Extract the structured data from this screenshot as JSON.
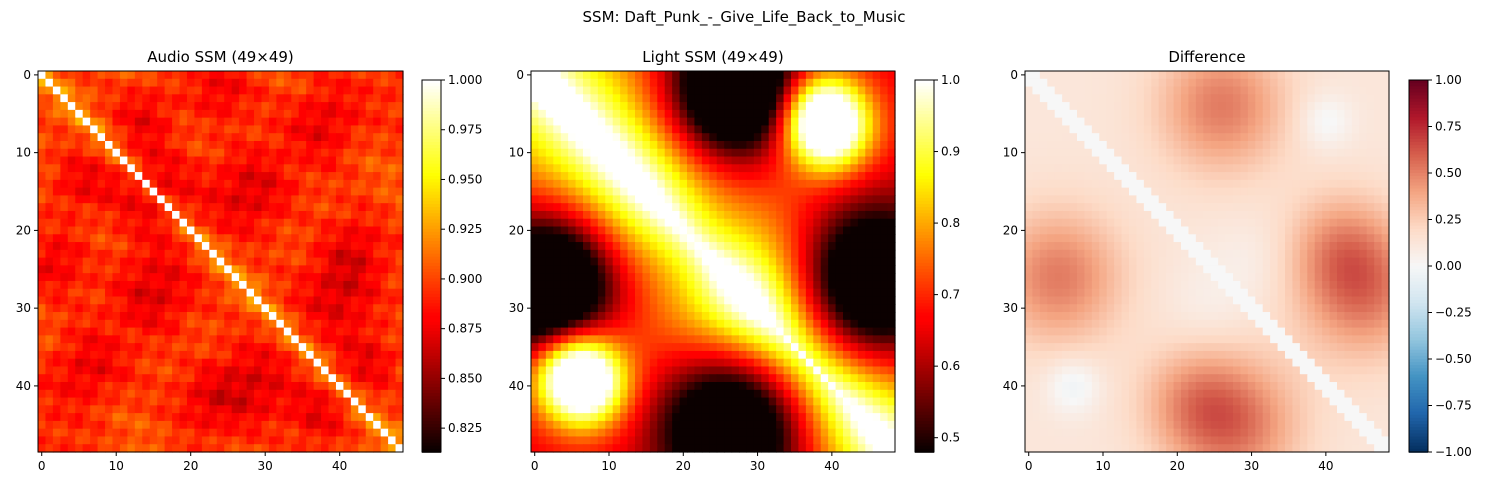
{
  "figure": {
    "suptitle": "SSM: Daft_Punk_-_Give_Life_Back_to_Music"
  },
  "chart_data": [
    {
      "type": "heatmap",
      "title": "Audio SSM (49×49)",
      "size": 49,
      "colormap": "hot",
      "vmin": 0.813,
      "vmax": 1.0,
      "axis_ticks": [
        "0",
        "10",
        "20",
        "30",
        "40"
      ],
      "colorbar_ticks": [
        "0.825",
        "0.850",
        "0.875",
        "0.900",
        "0.925",
        "0.950",
        "0.975",
        "1.000"
      ],
      "colorbar_tick_values": [
        0.825,
        0.85,
        0.875,
        0.9,
        0.925,
        0.95,
        0.975,
        1.0
      ],
      "dark_regions": [
        [
          15,
          28,
          0.035,
          4
        ],
        [
          28,
          15,
          0.035,
          4
        ],
        [
          15,
          15,
          0.03,
          4
        ],
        [
          28,
          40,
          0.035,
          4
        ],
        [
          40,
          28,
          0.035,
          4
        ],
        [
          6,
          38,
          0.03,
          3.5
        ],
        [
          38,
          6,
          0.03,
          3.5
        ],
        [
          5,
          14,
          0.025,
          3
        ],
        [
          14,
          5,
          0.025,
          3
        ],
        [
          37,
          44,
          0.025,
          3
        ],
        [
          44,
          37,
          0.025,
          3
        ],
        [
          22,
          42,
          0.02,
          3
        ],
        [
          42,
          22,
          0.02,
          3
        ],
        [
          2,
          24,
          0.025,
          3
        ],
        [
          24,
          2,
          0.025,
          3
        ]
      ],
      "bright_bands": [
        [
          12,
          0.06,
          3
        ],
        [
          21,
          0.04,
          3
        ],
        [
          33,
          0.06,
          3
        ]
      ]
    },
    {
      "type": "heatmap",
      "title": "Light SSM (49×49)",
      "size": 49,
      "colormap": "hot",
      "vmin": 0.48,
      "vmax": 1.0,
      "axis_ticks": [
        "0",
        "10",
        "20",
        "30",
        "40"
      ],
      "colorbar_ticks": [
        "0.5",
        "0.6",
        "0.7",
        "0.8",
        "0.9",
        "1.0"
      ],
      "colorbar_tick_values": [
        0.5,
        0.6,
        0.7,
        0.8,
        0.9,
        1.0
      ],
      "dark_regions": [
        [
          2,
          27,
          0.5,
          6
        ],
        [
          27,
          2,
          0.5,
          6
        ],
        [
          27,
          45,
          0.45,
          7
        ],
        [
          45,
          27,
          0.45,
          7
        ],
        [
          25,
          20,
          0.12,
          6
        ],
        [
          20,
          25,
          0.12,
          6
        ]
      ],
      "bright_regions": [
        [
          7,
          40,
          0.3,
          4
        ],
        [
          40,
          7,
          0.3,
          4
        ],
        [
          38,
          5,
          0.3,
          4
        ],
        [
          5,
          38,
          0.3,
          4
        ],
        [
          25,
          25,
          0.15,
          8
        ]
      ],
      "diag_width": 12
    },
    {
      "type": "heatmap",
      "title": "Difference",
      "size": 49,
      "colormap": "RdBu_r",
      "vmin": -1.0,
      "vmax": 1.0,
      "axis_ticks": [
        "0",
        "10",
        "20",
        "30",
        "40"
      ],
      "colorbar_ticks": [
        "−1.00",
        "−0.75",
        "−0.50",
        "−0.25",
        "0.00",
        "0.25",
        "0.50",
        "0.75",
        "1.00"
      ],
      "colorbar_tick_values": [
        -1.0,
        -0.75,
        -0.5,
        -0.25,
        0.0,
        0.25,
        0.5,
        0.75,
        1.0
      ],
      "warm_regions": [
        [
          4,
          26,
          0.4,
          6
        ],
        [
          26,
          4,
          0.4,
          6
        ],
        [
          28,
          45,
          0.4,
          6
        ],
        [
          45,
          28,
          0.4,
          6
        ],
        [
          22,
          42,
          0.25,
          5
        ],
        [
          42,
          22,
          0.25,
          5
        ]
      ],
      "cool_regions": [
        [
          40,
          6,
          -0.18,
          2.5
        ],
        [
          6,
          40,
          -0.15,
          2.5
        ],
        [
          30,
          24,
          -0.06,
          4
        ],
        [
          24,
          30,
          -0.06,
          4
        ]
      ]
    }
  ]
}
